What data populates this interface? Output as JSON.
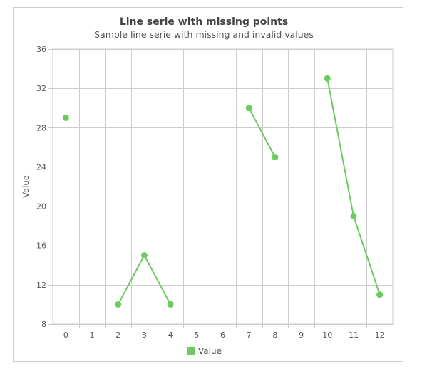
{
  "chart_data": {
    "type": "line",
    "title": "Line serie with missing points",
    "subtitle": "Sample line serie with missing and invalid values",
    "xlabel": "",
    "ylabel": "Value",
    "categories": [
      "0",
      "1",
      "2",
      "3",
      "4",
      "5",
      "6",
      "7",
      "8",
      "9",
      "10",
      "11",
      "12"
    ],
    "ylim": [
      8,
      36
    ],
    "yticks": [
      8,
      12,
      16,
      20,
      24,
      28,
      32,
      36
    ],
    "grid": true,
    "legend_position": "bottom",
    "series": [
      {
        "name": "Value",
        "color": "#6ccb5f",
        "values": [
          29,
          null,
          10,
          15,
          10,
          null,
          null,
          30,
          25,
          null,
          33,
          19,
          11
        ]
      }
    ]
  }
}
